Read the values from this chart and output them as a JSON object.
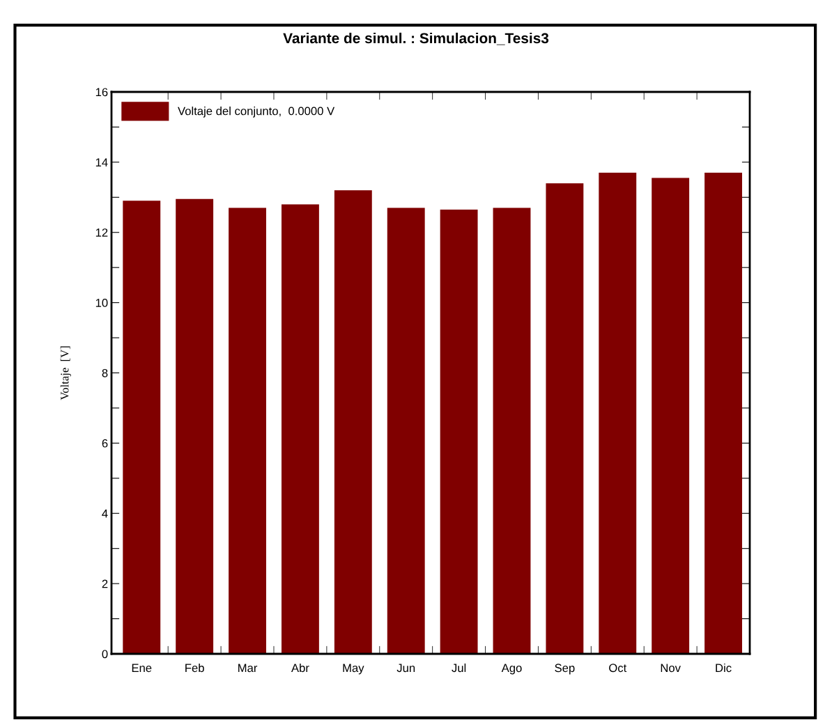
{
  "chart_data": {
    "type": "bar",
    "title": "Variante de simul. : Simulacion_Tesis3",
    "ylabel": "Voltaje  [V]",
    "categories": [
      "Ene",
      "Feb",
      "Mar",
      "Abr",
      "May",
      "Jun",
      "Jul",
      "Ago",
      "Sep",
      "Oct",
      "Nov",
      "Dic"
    ],
    "series": [
      {
        "name": "Voltaje del conjunto,  0.0000 V",
        "color": "#800000",
        "values": [
          12.9,
          12.95,
          12.7,
          12.8,
          13.2,
          12.7,
          12.65,
          12.7,
          13.4,
          13.7,
          13.55,
          13.7
        ]
      }
    ],
    "ylim": [
      0,
      16
    ],
    "yticks": [
      0,
      {
        "value": 1,
        "label": null
      },
      2,
      {
        "value": 3,
        "label": null
      },
      4,
      {
        "value": 5,
        "label": null
      },
      6,
      {
        "value": 7,
        "label": null
      },
      8,
      {
        "value": 9,
        "label": null
      },
      10,
      {
        "value": 11,
        "label": null
      },
      12,
      {
        "value": 13,
        "label": null
      },
      14,
      {
        "value": 15,
        "label": null
      },
      16
    ],
    "grid": false,
    "legend": "top left"
  }
}
